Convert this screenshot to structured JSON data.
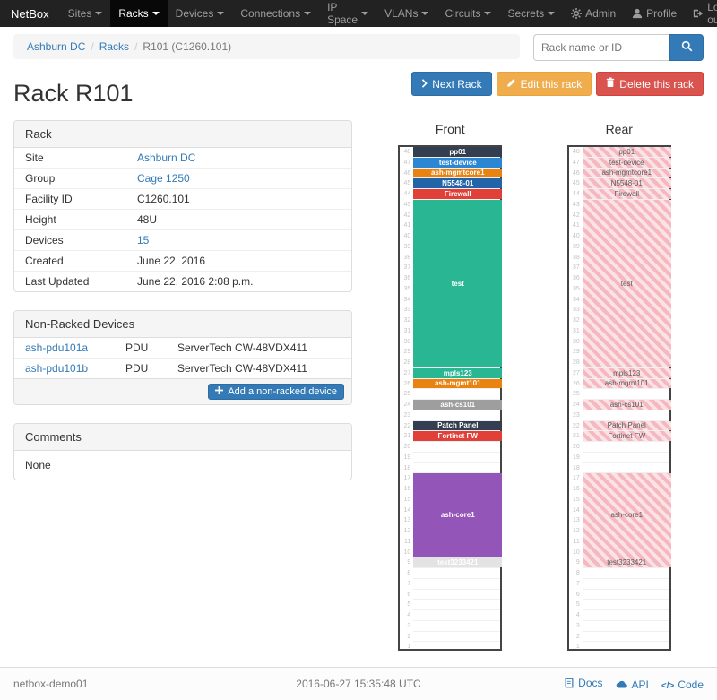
{
  "navbar": {
    "brand": "NetBox",
    "items": [
      {
        "label": "Sites",
        "active": false
      },
      {
        "label": "Racks",
        "active": true
      },
      {
        "label": "Devices",
        "active": false
      },
      {
        "label": "Connections",
        "active": false
      },
      {
        "label": "IP Space",
        "active": false
      },
      {
        "label": "VLANs",
        "active": false
      },
      {
        "label": "Circuits",
        "active": false
      },
      {
        "label": "Secrets",
        "active": false
      }
    ],
    "right_items": [
      {
        "label": "Admin",
        "icon": "gear-icon"
      },
      {
        "label": "Profile",
        "icon": "person-icon"
      },
      {
        "label": "Log out",
        "icon": "logout-icon"
      }
    ]
  },
  "breadcrumb": {
    "items": [
      {
        "label": "Ashburn DC",
        "link": true
      },
      {
        "label": "Racks",
        "link": true
      },
      {
        "label": "R101 (C1260.101)",
        "link": false
      }
    ]
  },
  "search": {
    "placeholder": "Rack name or ID"
  },
  "actions": [
    {
      "label": "Next Rack"
    },
    {
      "label": "Edit this rack"
    },
    {
      "label": "Delete this rack"
    }
  ],
  "page_title": "Rack R101",
  "rack_panel": {
    "title": "Rack",
    "rows": [
      {
        "label": "Site",
        "value": "Ashburn DC",
        "link": true
      },
      {
        "label": "Group",
        "value": "Cage 1250",
        "link": true
      },
      {
        "label": "Facility ID",
        "value": "C1260.101",
        "link": false
      },
      {
        "label": "Height",
        "value": "48U",
        "link": false
      },
      {
        "label": "Devices",
        "value": "15",
        "link": true
      },
      {
        "label": "Created",
        "value": "June 22, 2016",
        "link": false
      },
      {
        "label": "Last Updated",
        "value": "June 22, 2016 2:08 p.m.",
        "link": false
      }
    ]
  },
  "nonracked_panel": {
    "title": "Non-Racked Devices",
    "rows": [
      {
        "name": "ash-pdu101a",
        "role": "PDU",
        "type": "ServerTech CW-48VDX411"
      },
      {
        "name": "ash-pdu101b",
        "role": "PDU",
        "type": "ServerTech CW-48VDX411"
      }
    ],
    "add_button": "Add a non-racked device"
  },
  "comments_panel": {
    "title": "Comments",
    "body": "None"
  },
  "elevation": {
    "front_title": "Front",
    "rear_title": "Rear",
    "units_total": 48,
    "devices": [
      {
        "name": "pp01",
        "unit": 48,
        "height": 1,
        "color": "#333f50"
      },
      {
        "name": "test-device",
        "unit": 47,
        "height": 1,
        "color": "#2b87d3"
      },
      {
        "name": "ash-mgmtcore1",
        "unit": 46,
        "height": 1,
        "color": "#e8830f"
      },
      {
        "name": "N5548-01",
        "unit": 45,
        "height": 1,
        "color": "#2264a8"
      },
      {
        "name": "Firewall",
        "unit": 44,
        "height": 1,
        "color": "#e04038"
      },
      {
        "name": "test",
        "unit": 43,
        "height": 16,
        "color": "#29b693"
      },
      {
        "name": "mpls123",
        "unit": 27,
        "height": 1,
        "color": "#29b693"
      },
      {
        "name": "ash-mgmt101",
        "unit": 26,
        "height": 1,
        "color": "#e8830f"
      },
      {
        "name": "ash-cs101",
        "unit": 24,
        "height": 1,
        "color": "#9e9e9e"
      },
      {
        "name": "Patch Panel",
        "unit": 22,
        "height": 1,
        "color": "#333f50"
      },
      {
        "name": "Fortinet FW",
        "unit": 21,
        "height": 1,
        "color": "#e04038"
      },
      {
        "name": "ash-core1",
        "unit": 17,
        "height": 8,
        "color": "#9455b8"
      },
      {
        "name": "test3233421",
        "unit": 9,
        "height": 1,
        "color": "#e3e3e3",
        "text_color": "#ffffff"
      }
    ],
    "rear_stripe_a": "#fbe3e5",
    "rear_stripe_b": "#f5b8c0",
    "rear_text": "#5a5a5a"
  },
  "footer": {
    "hostname": "netbox-demo01",
    "timestamp": "2016-06-27 15:35:48 UTC",
    "links": [
      {
        "label": "Docs",
        "icon": "book-icon"
      },
      {
        "label": "API",
        "icon": "cloud-icon"
      },
      {
        "label": "Code",
        "icon": "code-icon"
      }
    ]
  }
}
